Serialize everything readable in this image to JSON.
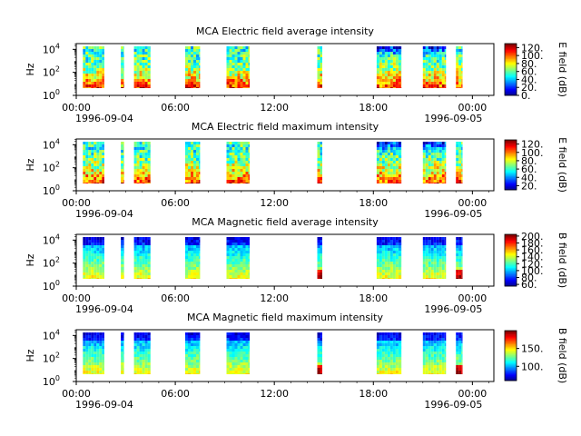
{
  "figure": {
    "title": ""
  },
  "chart_data": [
    {
      "type": "heatmap",
      "title": "MCA  Electric field average intensity",
      "ylabel": "Hz",
      "y_tick_labels": [
        "10^4",
        "10^2",
        "10^0"
      ],
      "y_log_range": [
        0,
        4.5
      ],
      "x_tick_labels": [
        "00:00",
        "06:00",
        "12:00",
        "18:00",
        "00:00"
      ],
      "x_hours": [
        0,
        6,
        12,
        18,
        24
      ],
      "x_date_labels": [
        "1996-09-04",
        "1996-09-05"
      ],
      "colorbar": {
        "label": "E field (dB)",
        "min": 0,
        "max": 130,
        "ticks": [
          "120.",
          "100.",
          "80.",
          "60.",
          "40.",
          "20.",
          "0."
        ],
        "tick_values": [
          120,
          100,
          80,
          60,
          40,
          20,
          0
        ]
      },
      "data_windows_hours": [
        [
          0.4,
          1.7
        ],
        [
          2.7,
          2.9
        ],
        [
          3.5,
          4.5
        ],
        [
          6.6,
          7.5
        ],
        [
          9.1,
          10.5
        ],
        [
          14.6,
          14.9
        ],
        [
          18.2,
          19.7
        ],
        [
          21.0,
          22.4
        ],
        [
          23.0,
          23.4
        ]
      ]
    },
    {
      "type": "heatmap",
      "title": "MCA  Electric field maximum intensity",
      "ylabel": "Hz",
      "y_tick_labels": [
        "10^4",
        "10^2",
        "10^0"
      ],
      "y_log_range": [
        0,
        4.5
      ],
      "x_tick_labels": [
        "00:00",
        "06:00",
        "12:00",
        "18:00",
        "00:00"
      ],
      "x_hours": [
        0,
        6,
        12,
        18,
        24
      ],
      "x_date_labels": [
        "1996-09-04",
        "1996-09-05"
      ],
      "colorbar": {
        "label": "E field (dB)",
        "min": 10,
        "max": 130,
        "ticks": [
          "120.",
          "100.",
          "80.",
          "60.",
          "40.",
          "20."
        ],
        "tick_values": [
          120,
          100,
          80,
          60,
          40,
          20
        ]
      },
      "data_windows_hours": [
        [
          0.4,
          1.7
        ],
        [
          2.7,
          2.9
        ],
        [
          3.5,
          4.5
        ],
        [
          6.6,
          7.5
        ],
        [
          9.1,
          10.5
        ],
        [
          14.6,
          14.9
        ],
        [
          18.2,
          19.7
        ],
        [
          21.0,
          22.4
        ],
        [
          23.0,
          23.4
        ]
      ]
    },
    {
      "type": "heatmap",
      "title": "MCA  Magnetic field average intensity",
      "ylabel": "Hz",
      "y_tick_labels": [
        "10^4",
        "10^2",
        "10^0"
      ],
      "y_log_range": [
        0,
        4.5
      ],
      "x_tick_labels": [
        "00:00",
        "06:00",
        "12:00",
        "18:00",
        "00:00"
      ],
      "x_hours": [
        0,
        6,
        12,
        18,
        24
      ],
      "x_date_labels": [
        "1996-09-04",
        "1996-09-05"
      ],
      "colorbar": {
        "label": "B field (dB)",
        "min": 55,
        "max": 205,
        "ticks": [
          "200.",
          "180.",
          "160.",
          "140.",
          "120.",
          "100.",
          "80.",
          "60."
        ],
        "tick_values": [
          200,
          180,
          160,
          140,
          120,
          100,
          80,
          60
        ]
      },
      "data_windows_hours": [
        [
          0.4,
          1.7
        ],
        [
          2.7,
          2.9
        ],
        [
          3.5,
          4.5
        ],
        [
          6.6,
          7.5
        ],
        [
          9.1,
          10.5
        ],
        [
          14.6,
          14.9
        ],
        [
          18.2,
          19.7
        ],
        [
          21.0,
          22.4
        ],
        [
          23.0,
          23.4
        ]
      ]
    },
    {
      "type": "heatmap",
      "title": "MCA  Magnetic field maximum intensity",
      "ylabel": "Hz",
      "y_tick_labels": [
        "10^4",
        "10^2",
        "10^0"
      ],
      "y_log_range": [
        0,
        4.5
      ],
      "x_tick_labels": [
        "00:00",
        "06:00",
        "12:00",
        "18:00",
        "00:00"
      ],
      "x_hours": [
        0,
        6,
        12,
        18,
        24
      ],
      "x_date_labels": [
        "1996-09-04",
        "1996-09-05"
      ],
      "colorbar": {
        "label": "B field (dB)",
        "min": 60,
        "max": 200,
        "ticks": [
          "150.",
          "100."
        ],
        "tick_values": [
          150,
          100
        ]
      },
      "data_windows_hours": [
        [
          0.4,
          1.7
        ],
        [
          2.7,
          2.9
        ],
        [
          3.5,
          4.5
        ],
        [
          6.6,
          7.5
        ],
        [
          9.1,
          10.5
        ],
        [
          14.6,
          14.9
        ],
        [
          18.2,
          19.7
        ],
        [
          21.0,
          22.4
        ],
        [
          23.0,
          23.4
        ]
      ]
    }
  ]
}
